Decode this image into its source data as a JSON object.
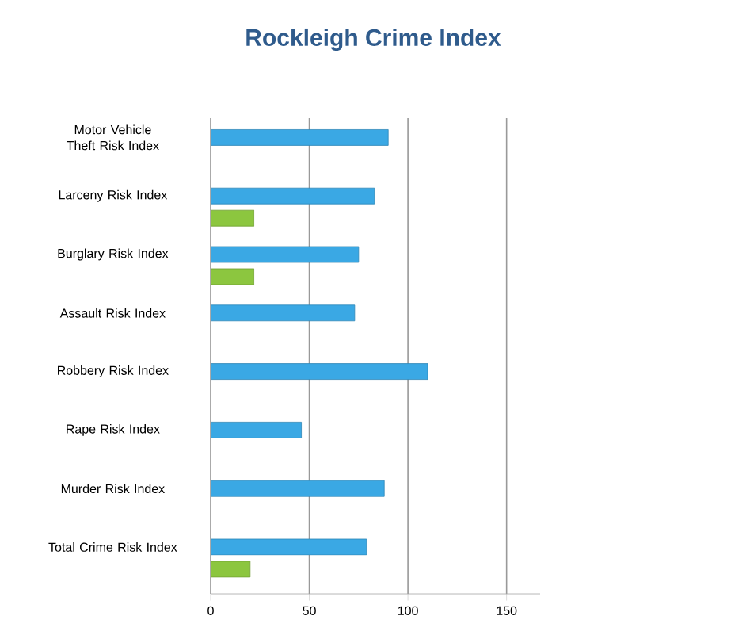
{
  "chart_data": {
    "type": "bar",
    "orientation": "horizontal",
    "title": "Rockleigh Crime Index",
    "categories": [
      "Motor Vehicle Theft Risk Index",
      "Larceny Risk Index",
      "Burglary Risk Index",
      "Assault Risk Index",
      "Robbery Risk Index",
      "Rape Risk Index",
      "Murder Risk Index",
      "Total Crime Risk Index"
    ],
    "series": [
      {
        "color": "#3aa8e4",
        "values": [
          90,
          83,
          75,
          73,
          110,
          46,
          88,
          79
        ]
      },
      {
        "color": "#8cc63f",
        "values": [
          null,
          22,
          22,
          null,
          null,
          null,
          null,
          20
        ]
      }
    ],
    "xlim": [
      0,
      167
    ],
    "xticks": [
      0,
      50,
      100,
      150
    ],
    "grid": "x"
  }
}
